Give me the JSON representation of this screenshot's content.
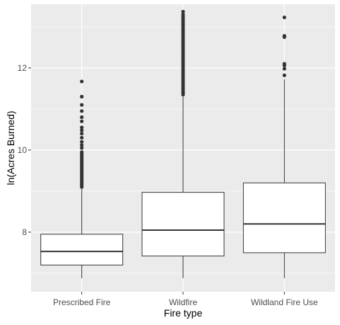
{
  "chart_data": {
    "type": "boxplot",
    "xlabel": "Fire type",
    "ylabel": "ln(Acres Burned)",
    "ylim": [
      6.55,
      13.55
    ],
    "y_ticks": [
      8,
      10,
      12
    ],
    "grid": true,
    "colors": {
      "panel_background": "#ebebeb",
      "gridline": "#ffffff",
      "box_fill": "#ffffff",
      "box_stroke": "#333333",
      "outlier": "#333333"
    },
    "categories": [
      "Prescribed Fire",
      "Wildfire",
      "Wildland Fire Use"
    ],
    "boxes": [
      {
        "category": "Prescribed Fire",
        "whisker_low": 6.88,
        "q1": 7.2,
        "median": 7.53,
        "q3": 7.95,
        "whisker_high": 9.05,
        "outliers": [
          9.1,
          9.15,
          9.2,
          9.25,
          9.3,
          9.35,
          9.4,
          9.45,
          9.5,
          9.55,
          9.6,
          9.65,
          9.7,
          9.75,
          9.8,
          9.85,
          9.9,
          9.95,
          10.05,
          10.12,
          10.2,
          10.3,
          10.4,
          10.48,
          10.55,
          10.7,
          10.8,
          10.95,
          11.1,
          11.3,
          11.67
        ]
      },
      {
        "category": "Wildfire",
        "whisker_low": 6.88,
        "q1": 7.42,
        "median": 8.05,
        "q3": 8.97,
        "whisker_high": 11.3,
        "outliers": [
          11.35,
          11.4,
          11.45,
          11.5,
          11.55,
          11.6,
          11.65,
          11.7,
          11.75,
          11.8,
          11.85,
          11.9,
          11.95,
          12.0,
          12.05,
          12.1,
          12.15,
          12.2,
          12.25,
          12.3,
          12.35,
          12.4,
          12.45,
          12.5,
          12.55,
          12.6,
          12.65,
          12.7,
          12.75,
          12.8,
          12.85,
          12.9,
          12.95,
          13.0,
          13.05,
          13.1,
          13.15,
          13.2,
          13.25,
          13.3,
          13.37
        ]
      },
      {
        "category": "Wildland Fire Use",
        "whisker_low": 6.88,
        "q1": 7.5,
        "median": 8.2,
        "q3": 9.2,
        "whisker_high": 11.72,
        "outliers": [
          11.82,
          11.98,
          12.06,
          12.1,
          12.75,
          12.78,
          13.23
        ]
      }
    ]
  }
}
